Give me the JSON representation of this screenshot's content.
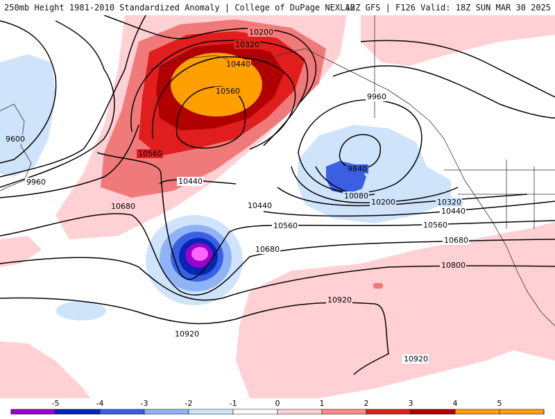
{
  "header": {
    "title_left": "250mb Height 1981-2010 Standardized Anomaly | College of DuPage NEXLAB",
    "title_right": "12Z GFS | F126 Valid: 18Z SUN MAR 30 2025"
  },
  "contours": {
    "labels": [
      "10200",
      "10320",
      "10440",
      "10560",
      "10560",
      "9600",
      "9960",
      "10680",
      "10440",
      "10440",
      "9960",
      "9840",
      "10080",
      "10200",
      "10320",
      "10440",
      "10560",
      "10560",
      "10680",
      "10680",
      "10800",
      "10920",
      "10920",
      "10920"
    ]
  },
  "colorbar": {
    "ticks": [
      "-5",
      "-4",
      "-3",
      "-2",
      "-1",
      "0",
      "1",
      "2",
      "3",
      "4",
      "5"
    ],
    "colors": [
      "#ff66ff",
      "#9a00c8",
      "#0026b4",
      "#3a5fe0",
      "#8fb4f5",
      "#cfe3fb",
      "#ffffff",
      "#ffd0d4",
      "#ff8a8a",
      "#e11e1e",
      "#b40000",
      "#ff9f00",
      "#ffd000"
    ]
  },
  "palette": {
    "neg1": "#cfe3fb",
    "neg2": "#8fb4f5",
    "neg3": "#3a5fe0",
    "neg4": "#0026b4",
    "neg5": "#9a00c8",
    "neg6": "#ff66ff",
    "pos1": "#ffd0d4",
    "pos2": "#f07a7a",
    "pos3": "#e11e1e",
    "pos4": "#b00000",
    "pos5": "#ff9f00"
  }
}
